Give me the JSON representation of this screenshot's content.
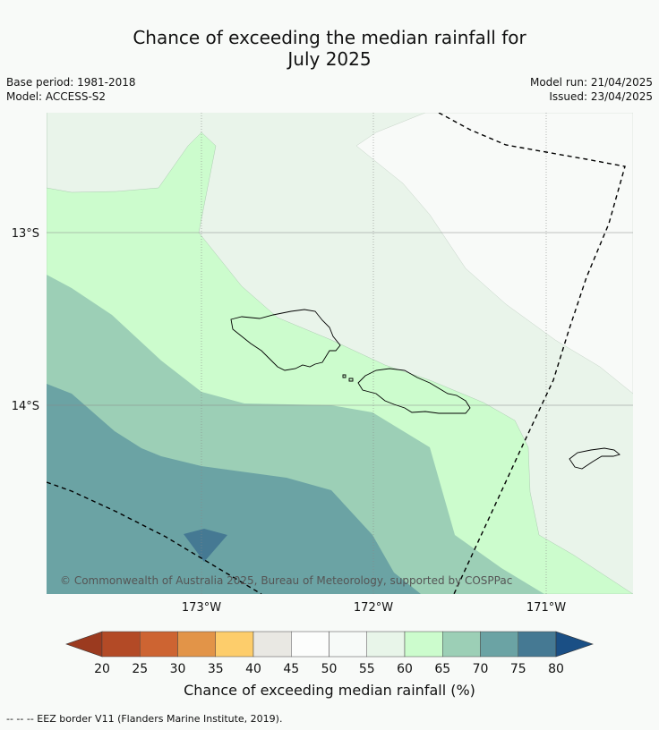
{
  "title_line1": "Chance of exceeding the median rainfall for",
  "title_line2": "July 2025",
  "base_period": "Base period: 1981-2018",
  "model": "Model: ACCESS-S2",
  "model_run": "Model run: 21/04/2025",
  "issued": "Issued: 23/04/2025",
  "lat_labels": [
    "13°S",
    "14°S"
  ],
  "lon_labels": [
    "173°W",
    "172°W",
    "171°W"
  ],
  "copyright": "© Commonwealth of Australia 2025, Bureau of Meteorology, supported by COSPPac",
  "colorbar": {
    "ticks": [
      "20",
      "25",
      "30",
      "35",
      "40",
      "45",
      "50",
      "55",
      "60",
      "65",
      "70",
      "75",
      "80"
    ],
    "colors": [
      "#9b3a1f",
      "#b34a26",
      "#cd6432",
      "#e29448",
      "#fdcd6b",
      "#e9e8e3",
      "#fcfdfc",
      "#f7faf8",
      "#e8f5e9",
      "#ccfccd",
      "#9ccfb6",
      "#6ba3a4",
      "#457993",
      "#1a4f85"
    ],
    "label": "Chance of exceeding median rainfall (%)"
  },
  "footer": "--  --  -- EEZ border V11 (Flanders Marine Institute, 2019)."
}
